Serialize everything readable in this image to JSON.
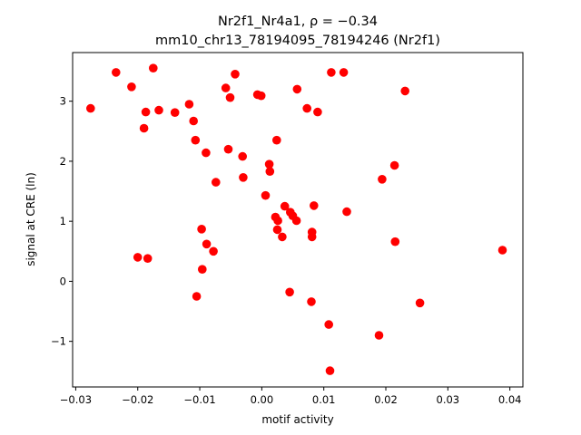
{
  "chart_data": {
    "type": "scatter",
    "title_line1": "Nr2f1_Nr4a1, ρ = −0.34",
    "title_line2": "mm10_chr13_78194095_78194246 (Nr2f1)",
    "xlabel": "motif activity",
    "ylabel": "signal at CRE (ln)",
    "xlim": [
      -0.0305,
      0.0421
    ],
    "ylim": [
      -1.76,
      3.81
    ],
    "xticks": [
      -0.03,
      -0.02,
      -0.01,
      0.0,
      0.01,
      0.02,
      0.03,
      0.04
    ],
    "xtick_labels": [
      "−0.03",
      "−0.02",
      "−0.01",
      "0.00",
      "0.01",
      "0.02",
      "0.03",
      "0.04"
    ],
    "yticks": [
      -1,
      0,
      1,
      2,
      3
    ],
    "ytick_labels": [
      "−1",
      "0",
      "1",
      "2",
      "3"
    ],
    "marker_color": "#ff0000",
    "grid": false,
    "points": [
      {
        "x": -0.0276,
        "y": 2.88
      },
      {
        "x": -0.0235,
        "y": 3.48
      },
      {
        "x": -0.021,
        "y": 3.24
      },
      {
        "x": -0.02,
        "y": 0.4
      },
      {
        "x": -0.019,
        "y": 2.55
      },
      {
        "x": -0.0187,
        "y": 2.82
      },
      {
        "x": -0.0184,
        "y": 0.38
      },
      {
        "x": -0.0175,
        "y": 3.55
      },
      {
        "x": -0.0166,
        "y": 2.85
      },
      {
        "x": -0.014,
        "y": 2.81
      },
      {
        "x": -0.0117,
        "y": 2.95
      },
      {
        "x": -0.011,
        "y": 2.67
      },
      {
        "x": -0.0107,
        "y": 2.35
      },
      {
        "x": -0.0105,
        "y": -0.25
      },
      {
        "x": -0.0097,
        "y": 0.87
      },
      {
        "x": -0.0096,
        "y": 0.2
      },
      {
        "x": -0.009,
        "y": 2.14
      },
      {
        "x": -0.0089,
        "y": 0.62
      },
      {
        "x": -0.0078,
        "y": 0.5
      },
      {
        "x": -0.0074,
        "y": 1.65
      },
      {
        "x": -0.0058,
        "y": 3.22
      },
      {
        "x": -0.0054,
        "y": 2.2
      },
      {
        "x": -0.0051,
        "y": 3.06
      },
      {
        "x": -0.0043,
        "y": 3.45
      },
      {
        "x": -0.0031,
        "y": 2.08
      },
      {
        "x": -0.003,
        "y": 1.73
      },
      {
        "x": -0.0007,
        "y": 3.11
      },
      {
        "x": -0.0001,
        "y": 3.09
      },
      {
        "x": 0.0006,
        "y": 1.43
      },
      {
        "x": 0.0012,
        "y": 1.95
      },
      {
        "x": 0.0013,
        "y": 1.83
      },
      {
        "x": 0.0022,
        "y": 1.07
      },
      {
        "x": 0.0024,
        "y": 2.35
      },
      {
        "x": 0.0025,
        "y": 0.86
      },
      {
        "x": 0.0026,
        "y": 1.01
      },
      {
        "x": 0.0033,
        "y": 0.74
      },
      {
        "x": 0.0037,
        "y": 1.25
      },
      {
        "x": 0.0045,
        "y": -0.18
      },
      {
        "x": 0.0046,
        "y": 1.15
      },
      {
        "x": 0.005,
        "y": 1.09
      },
      {
        "x": 0.0056,
        "y": 1.01
      },
      {
        "x": 0.0057,
        "y": 3.2
      },
      {
        "x": 0.0073,
        "y": 2.88
      },
      {
        "x": 0.008,
        "y": -0.34
      },
      {
        "x": 0.0081,
        "y": 0.82
      },
      {
        "x": 0.0081,
        "y": 0.74
      },
      {
        "x": 0.0084,
        "y": 1.26
      },
      {
        "x": 0.009,
        "y": 2.82
      },
      {
        "x": 0.0108,
        "y": -0.72
      },
      {
        "x": 0.011,
        "y": -1.49
      },
      {
        "x": 0.0112,
        "y": 3.48
      },
      {
        "x": 0.0132,
        "y": 3.48
      },
      {
        "x": 0.0137,
        "y": 1.16
      },
      {
        "x": 0.0189,
        "y": -0.9
      },
      {
        "x": 0.0194,
        "y": 1.7
      },
      {
        "x": 0.0214,
        "y": 1.93
      },
      {
        "x": 0.0215,
        "y": 0.66
      },
      {
        "x": 0.0231,
        "y": 3.17
      },
      {
        "x": 0.0255,
        "y": -0.36
      },
      {
        "x": 0.0388,
        "y": 0.52
      }
    ]
  }
}
